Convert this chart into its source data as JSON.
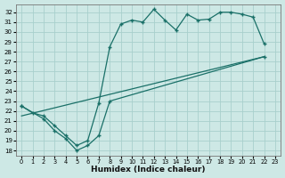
{
  "xlabel": "Humidex (Indice chaleur)",
  "bg_color": "#cde8e5",
  "grid_color": "#a8d0cc",
  "line_color": "#1a7068",
  "xlim": [
    -0.5,
    23.5
  ],
  "ylim": [
    17.5,
    32.8
  ],
  "xticks": [
    0,
    1,
    2,
    3,
    4,
    5,
    6,
    7,
    8,
    9,
    10,
    11,
    12,
    13,
    14,
    15,
    16,
    17,
    18,
    19,
    20,
    21,
    22,
    23
  ],
  "yticks": [
    18,
    19,
    20,
    21,
    22,
    23,
    24,
    25,
    26,
    27,
    28,
    29,
    30,
    31,
    32
  ],
  "upper_curve_x": [
    0,
    1,
    2,
    3,
    4,
    5,
    6,
    7,
    8,
    9,
    10,
    11,
    12,
    13,
    14,
    15,
    16,
    17,
    18,
    19,
    20,
    21,
    22
  ],
  "upper_curve_y": [
    22.5,
    21.8,
    21.5,
    20.5,
    19.5,
    18.5,
    19.0,
    22.8,
    28.5,
    30.8,
    31.2,
    31.0,
    32.3,
    31.2,
    30.2,
    31.8,
    31.2,
    31.3,
    32.0,
    32.0,
    31.8,
    31.5,
    28.8
  ],
  "lower_return_x": [
    0,
    2,
    3,
    4,
    5,
    6,
    7,
    8,
    22
  ],
  "lower_return_y": [
    22.5,
    21.2,
    20.0,
    19.2,
    18.0,
    18.5,
    19.5,
    23.0,
    27.5
  ],
  "trend_x": [
    0,
    22
  ],
  "trend_y": [
    21.5,
    27.5
  ]
}
